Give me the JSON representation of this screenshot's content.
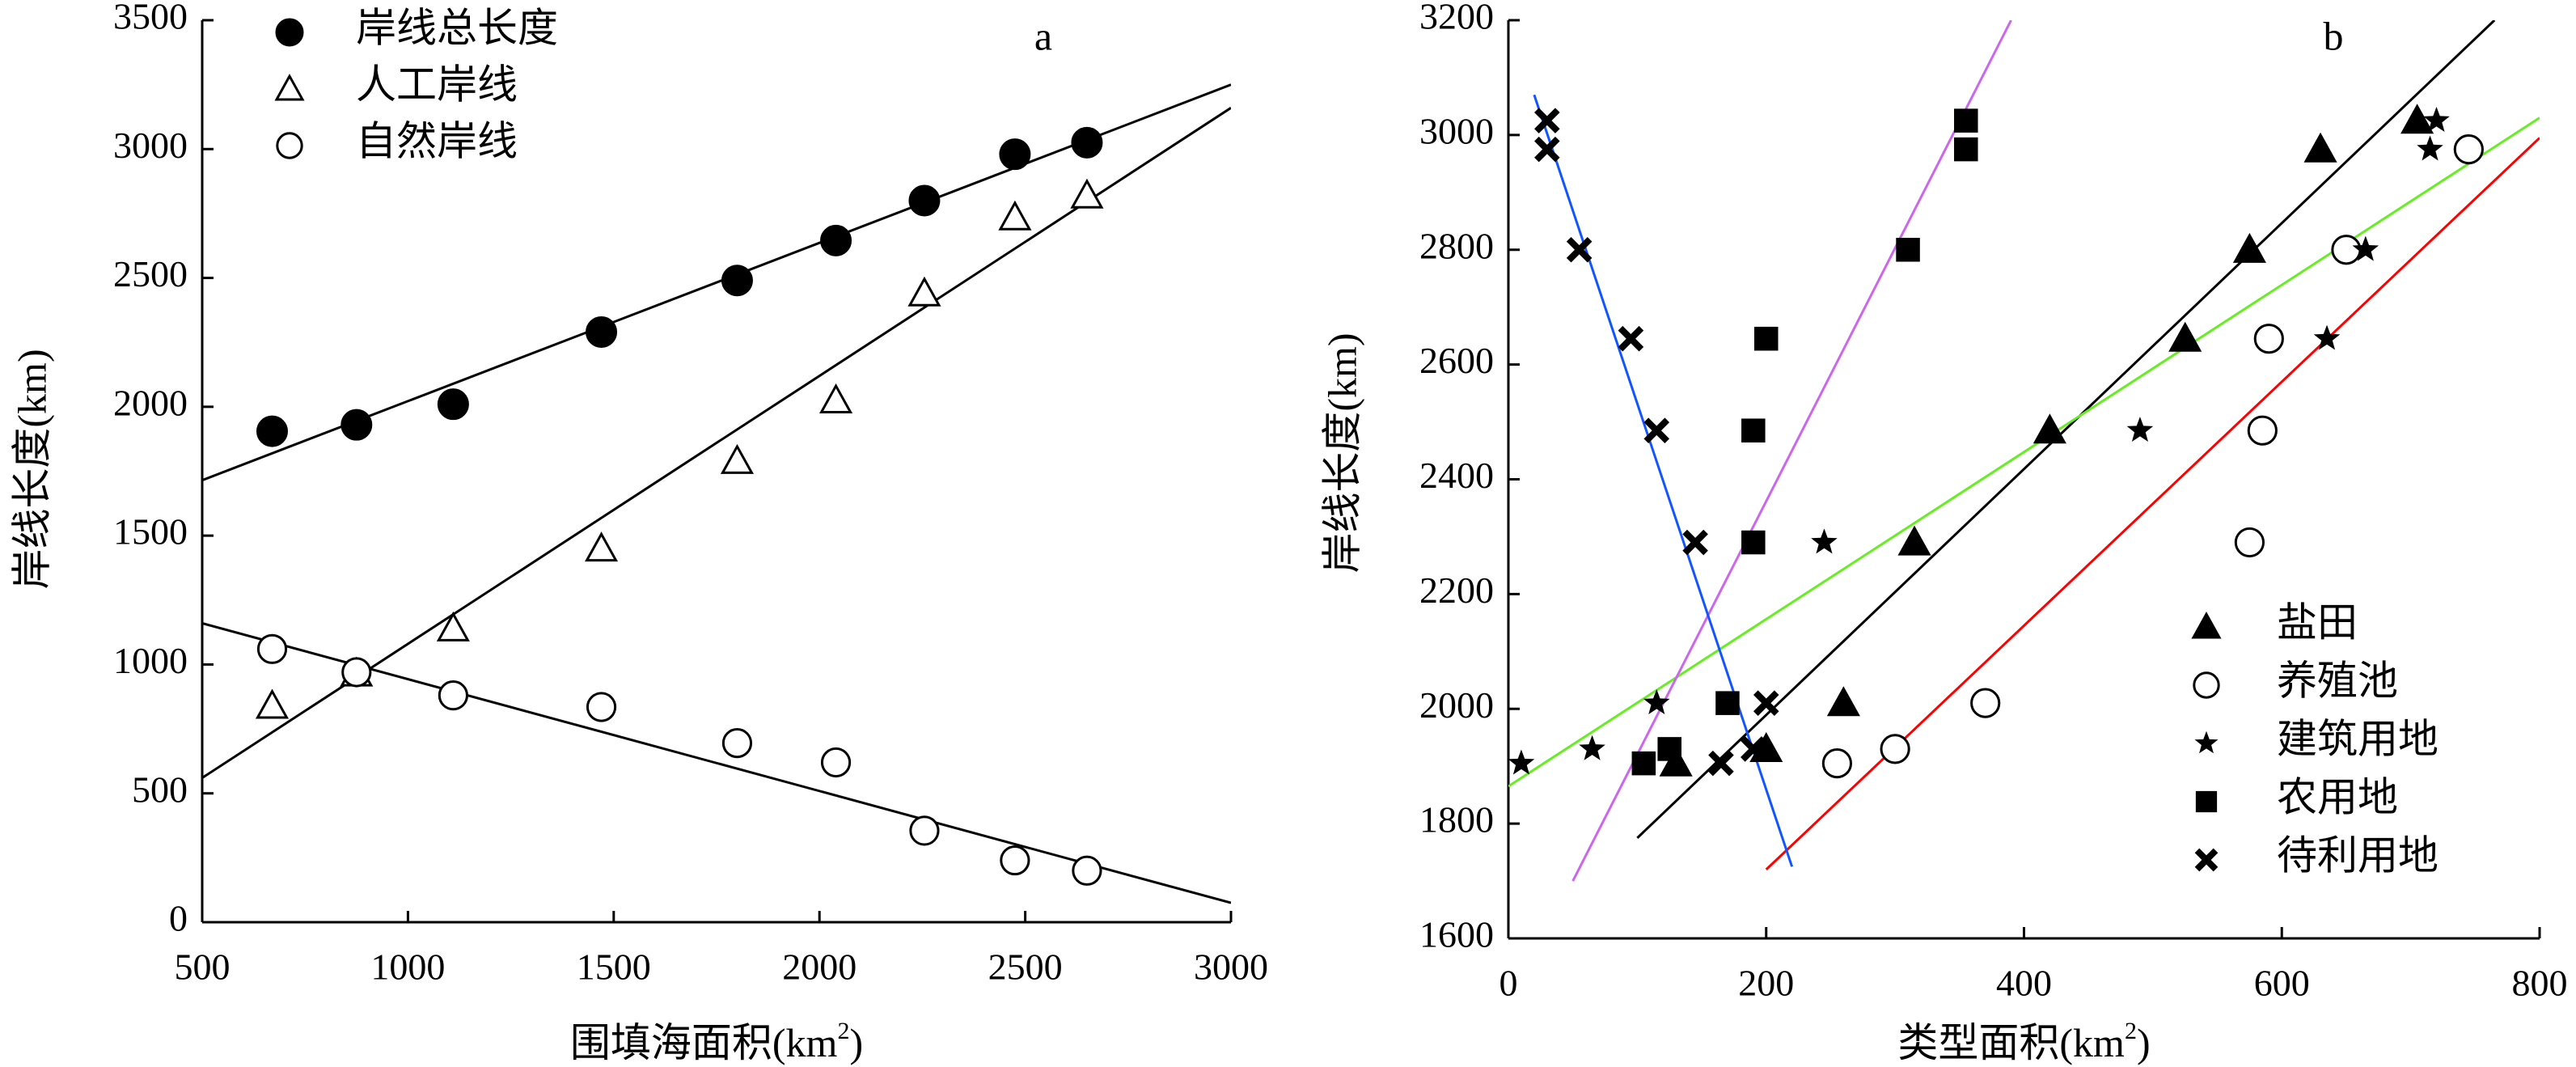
{
  "chart_data": [
    {
      "type": "scatter",
      "panel_label": "a",
      "xlabel": "围填海面积",
      "xlabel_unit": "(km",
      "xlabel_sup": "2",
      "xlabel_close": ")",
      "ylabel": "岸线长度(km)",
      "xlim": [
        500,
        3000
      ],
      "ylim": [
        0,
        3500
      ],
      "xticks": [
        500,
        1000,
        1500,
        2000,
        2500,
        3000
      ],
      "yticks": [
        0,
        500,
        1000,
        1500,
        2000,
        2500,
        3000,
        3500
      ],
      "legend_position": "top-left",
      "series": [
        {
          "name": "岸线总长度",
          "marker": "filled-circle",
          "x": [
            670,
            875,
            1110,
            1470,
            1800,
            2040,
            2255,
            2475,
            2650
          ],
          "y": [
            1905,
            1930,
            2010,
            2290,
            2490,
            2645,
            2800,
            2980,
            3025
          ]
        },
        {
          "name": "人工岸线",
          "marker": "open-triangle",
          "x": [
            670,
            875,
            1110,
            1470,
            1800,
            2040,
            2255,
            2475,
            2650
          ],
          "y": [
            840,
            965,
            1140,
            1450,
            1790,
            2025,
            2440,
            2735,
            2820
          ]
        },
        {
          "name": "自然岸线",
          "marker": "open-circle",
          "x": [
            670,
            875,
            1110,
            1470,
            1800,
            2040,
            2255,
            2475,
            2650
          ],
          "y": [
            1060,
            970,
            880,
            835,
            695,
            620,
            355,
            240,
            200
          ]
        }
      ],
      "fit_lines": [
        {
          "series": "岸线总长度",
          "color": "#000000",
          "x": [
            500,
            3000
          ],
          "y": [
            1715,
            3250
          ]
        },
        {
          "series": "人工岸线",
          "color": "#000000",
          "x": [
            500,
            3000
          ],
          "y": [
            560,
            3160
          ]
        },
        {
          "series": "自然岸线",
          "color": "#000000",
          "x": [
            500,
            3000
          ],
          "y": [
            1160,
            75
          ]
        }
      ]
    },
    {
      "type": "scatter",
      "panel_label": "b",
      "xlabel": "类型面积",
      "xlabel_unit": "(km",
      "xlabel_sup": "2",
      "xlabel_close": ")",
      "ylabel": "岸线长度(km)",
      "xlim": [
        0,
        800
      ],
      "ylim": [
        1600,
        3200
      ],
      "xticks": [
        0,
        200,
        400,
        600,
        800
      ],
      "yticks": [
        1600,
        1800,
        2000,
        2200,
        2400,
        2600,
        2800,
        3000,
        3200
      ],
      "legend_position": "bottom-right",
      "series": [
        {
          "name": "盐田",
          "marker": "filled-triangle",
          "x": [
            130,
            200,
            260,
            315,
            420,
            525,
            575,
            630,
            705
          ],
          "y": [
            1905,
            1930,
            2010,
            2290,
            2485,
            2645,
            2800,
            2975,
            3025
          ]
        },
        {
          "name": "养殖池",
          "marker": "open-circle",
          "x": [
            255,
            300,
            370,
            575,
            585,
            590,
            650,
            745
          ],
          "y": [
            1905,
            1930,
            2010,
            2290,
            2485,
            2645,
            2800,
            2975
          ]
        },
        {
          "name": "建筑用地",
          "marker": "filled-star",
          "x": [
            10,
            65,
            115,
            245,
            490,
            635,
            665,
            715,
            720
          ],
          "y": [
            1905,
            1930,
            2010,
            2290,
            2485,
            2645,
            2800,
            2975,
            3025
          ]
        },
        {
          "name": "农用地",
          "marker": "filled-square",
          "x": [
            105,
            125,
            170,
            190,
            190,
            200,
            310,
            355,
            355
          ],
          "y": [
            1905,
            1930,
            2010,
            2290,
            2485,
            2645,
            2800,
            2975,
            3025
          ]
        },
        {
          "name": "待利用地",
          "marker": "x",
          "x": [
            165,
            190,
            200,
            145,
            115,
            95,
            55,
            30,
            30
          ],
          "y": [
            1905,
            1930,
            2010,
            2290,
            2485,
            2645,
            2800,
            2975,
            3025
          ]
        }
      ],
      "fit_lines": [
        {
          "series": "盐田",
          "color": "#000000",
          "x": [
            100,
            765
          ],
          "y": [
            1775,
            3200
          ]
        },
        {
          "series": "养殖池",
          "color": "#ff0000",
          "x": [
            200,
            800
          ],
          "y": [
            1720,
            2995
          ]
        },
        {
          "series": "建筑用地",
          "color": "#66ee22",
          "x": [
            0,
            800
          ],
          "y": [
            1865,
            3030
          ]
        },
        {
          "series": "农用地",
          "color": "#cc66ee",
          "x": [
            50,
            390
          ],
          "y": [
            1700,
            3200
          ]
        },
        {
          "series": "待利用地",
          "color": "#1155ff",
          "x": [
            20,
            220
          ],
          "y": [
            3070,
            1725
          ]
        }
      ]
    }
  ]
}
